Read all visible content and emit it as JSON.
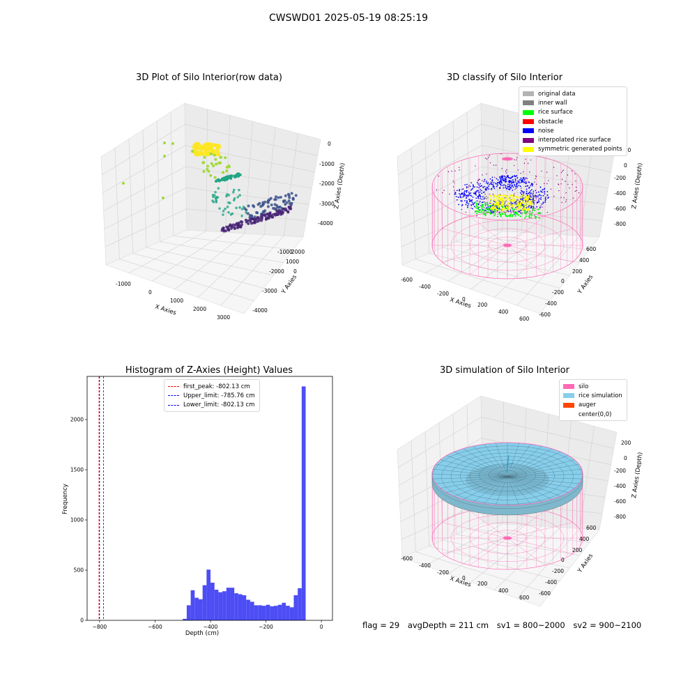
{
  "suptitle": "CWSWD01 2025-05-19 08:25:19",
  "footer": {
    "flag": "flag = 29",
    "avg_depth": "avgDepth = 211 cm",
    "sv1": "sv1 = 800~2000",
    "sv2": "sv2 = 900~2100"
  },
  "chart_data": [
    {
      "type": "scatter",
      "title": "3D Plot of Silo Interior(row data)",
      "xlabel": "X Axies",
      "ylabel": "Y Axies",
      "zlabel": "Z Axies (Depth)",
      "x_ticks": [
        "-1000",
        "0",
        "1000",
        "2000",
        "3000"
      ],
      "y_ticks": [
        "-4000",
        "-3000",
        "-2000",
        "-1000",
        "0",
        "1000",
        "2000"
      ],
      "z_ticks": [
        "-4000",
        "-3000",
        "-2000",
        "-1000",
        "0"
      ],
      "colors": {
        "top": "#fde725",
        "upper": "#a0da39",
        "middle": "#21a585",
        "lower": "#3b528b",
        "bottom": "#482475"
      }
    },
    {
      "type": "scatter",
      "title": "3D classify of Silo Interior",
      "xlabel": "X Axies",
      "ylabel": "Y Axies",
      "zlabel": "Z Axies (Depth)",
      "x_ticks": [
        "-600",
        "-400",
        "-200",
        "0",
        "200",
        "400",
        "600"
      ],
      "y_ticks": [
        "-600",
        "-400",
        "-200",
        "0",
        "200",
        "400",
        "600"
      ],
      "z_ticks": [
        "-800",
        "-600",
        "-400",
        "-200",
        "0",
        "200"
      ],
      "legend": [
        {
          "label": "original data",
          "color": "#b3b3b3"
        },
        {
          "label": "inner wall",
          "color": "#808080"
        },
        {
          "label": "rice surface",
          "color": "#00ff00"
        },
        {
          "label": "obstacle",
          "color": "#ff0000"
        },
        {
          "label": "noise",
          "color": "#0000ff"
        },
        {
          "label": "interpolated rice surface",
          "color": "#800080"
        },
        {
          "label": "symmetric generated points",
          "color": "#ffff00"
        }
      ],
      "wire_color": "#ff69b4"
    },
    {
      "type": "bar",
      "title": "Histogram of Z-Axies (Height) Values",
      "xlabel": "Depth (cm)",
      "ylabel": "Frequency",
      "xlim": [
        -845,
        40
      ],
      "ylim": [
        0,
        2430
      ],
      "x_ticks": [
        -800,
        -600,
        -400,
        -200,
        0
      ],
      "y_ticks": [
        0,
        500,
        1000,
        1500,
        2000
      ],
      "bar_color": "#4d4df5",
      "bin_start": -500,
      "bin_width": 14.3,
      "values": [
        15,
        150,
        300,
        225,
        210,
        350,
        505,
        375,
        305,
        280,
        290,
        325,
        325,
        270,
        260,
        250,
        205,
        185,
        150,
        150,
        145,
        155,
        140,
        145,
        155,
        175,
        145,
        130,
        250,
        320,
        2330
      ],
      "vlines": [
        {
          "label": "first_peak: -802.13 cm",
          "x": -802.13,
          "color": "#ff0000"
        },
        {
          "label": "Upper_limit: -785.76 cm",
          "x": -785.76,
          "color": "#0000ff"
        },
        {
          "label": "Lower_limit: -802.13 cm",
          "x": -802.13,
          "color": "#0000ff"
        }
      ]
    },
    {
      "type": "scatter",
      "title": "3D simulation of Silo Interior",
      "xlabel": "X Axies",
      "ylabel": "Y Axies",
      "zlabel": "Z Axies (Depth)",
      "x_ticks": [
        "-600",
        "-400",
        "-200",
        "0",
        "200",
        "400",
        "600"
      ],
      "y_ticks": [
        "-600",
        "-400",
        "-200",
        "0",
        "200",
        "400",
        "600"
      ],
      "z_ticks": [
        "-800",
        "-600",
        "-400",
        "-200",
        "0",
        "200"
      ],
      "legend": [
        {
          "label": "silo",
          "color": "#ff69b4"
        },
        {
          "label": "rice simulation",
          "color": "#87ceeb"
        },
        {
          "label": "auger",
          "color": "#ff4500"
        },
        {
          "label": "center(0,0)",
          "color": "#ffffff"
        }
      ]
    }
  ]
}
